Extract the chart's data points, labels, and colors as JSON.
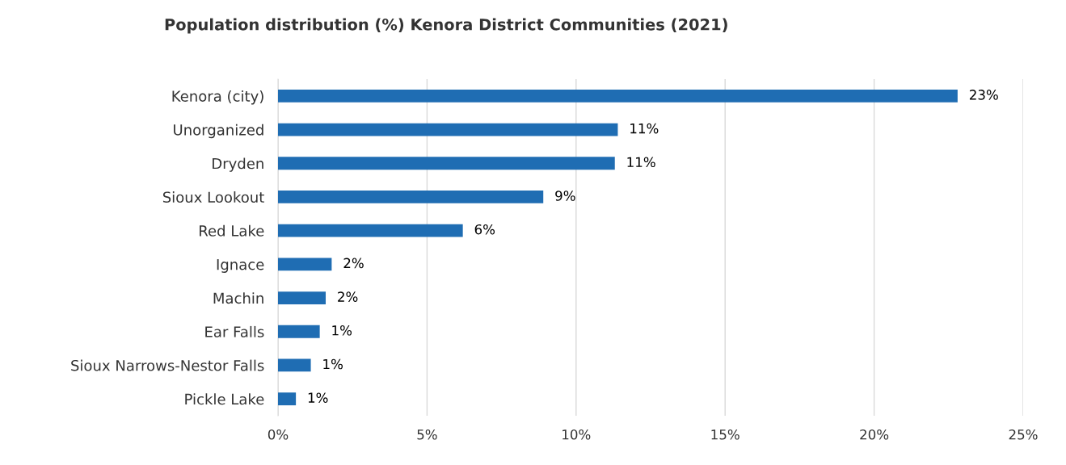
{
  "chart_data": {
    "type": "bar",
    "orientation": "horizontal",
    "title": "Population distribution (%) Kenora District Communities (2021)",
    "categories": [
      "Kenora (city)",
      "Unorganized",
      "Dryden",
      "Sioux Lookout",
      "Red Lake",
      "Ignace",
      "Machin",
      "Ear Falls",
      "Sioux Narrows-Nestor Falls",
      "Pickle Lake"
    ],
    "values": [
      22.8,
      11.4,
      11.3,
      8.9,
      6.2,
      1.8,
      1.6,
      1.4,
      1.1,
      0.6
    ],
    "value_labels": [
      "23%",
      "11%",
      "11%",
      "9%",
      "6%",
      "2%",
      "2%",
      "1%",
      "1%",
      "1%"
    ],
    "color": "#1f6db3",
    "xlim": [
      0,
      25
    ],
    "xticks": [
      {
        "value": 0,
        "label": "0%"
      },
      {
        "value": 5,
        "label": "5%"
      },
      {
        "value": 10,
        "label": "10%"
      },
      {
        "value": 15,
        "label": "15%"
      },
      {
        "value": 20,
        "label": "20%"
      },
      {
        "value": 25,
        "label": "25%"
      }
    ],
    "grid": "x"
  }
}
